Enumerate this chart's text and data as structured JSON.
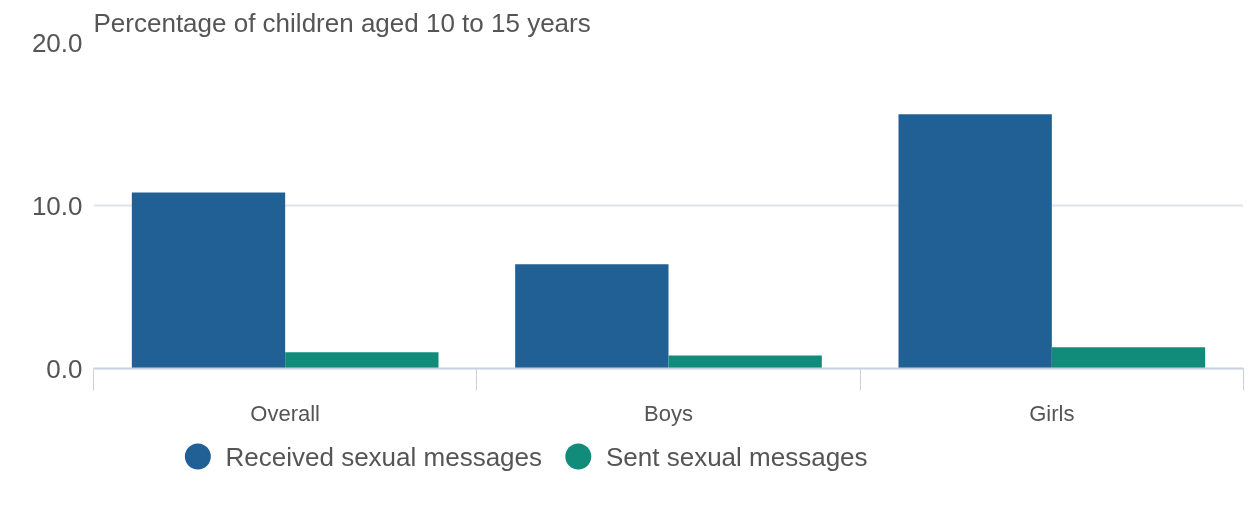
{
  "chart_data": {
    "type": "bar",
    "ylabel": "Percentage of children aged 10 to 15 years",
    "categories": [
      "Overall",
      "Boys",
      "Girls"
    ],
    "series": [
      {
        "name": "Received sexual messages",
        "color": "#206095",
        "values": [
          10.8,
          6.4,
          15.6
        ]
      },
      {
        "name": "Sent sexual messages",
        "color": "#118c7b",
        "values": [
          1.0,
          0.8,
          1.3
        ]
      }
    ],
    "ylim": [
      0,
      20
    ],
    "yticks": [
      {
        "value": 0,
        "label": "0.0"
      },
      {
        "value": 10,
        "label": "10.0"
      },
      {
        "value": 20,
        "label": "20.0"
      }
    ],
    "grid": "y",
    "legend": "bottom"
  }
}
